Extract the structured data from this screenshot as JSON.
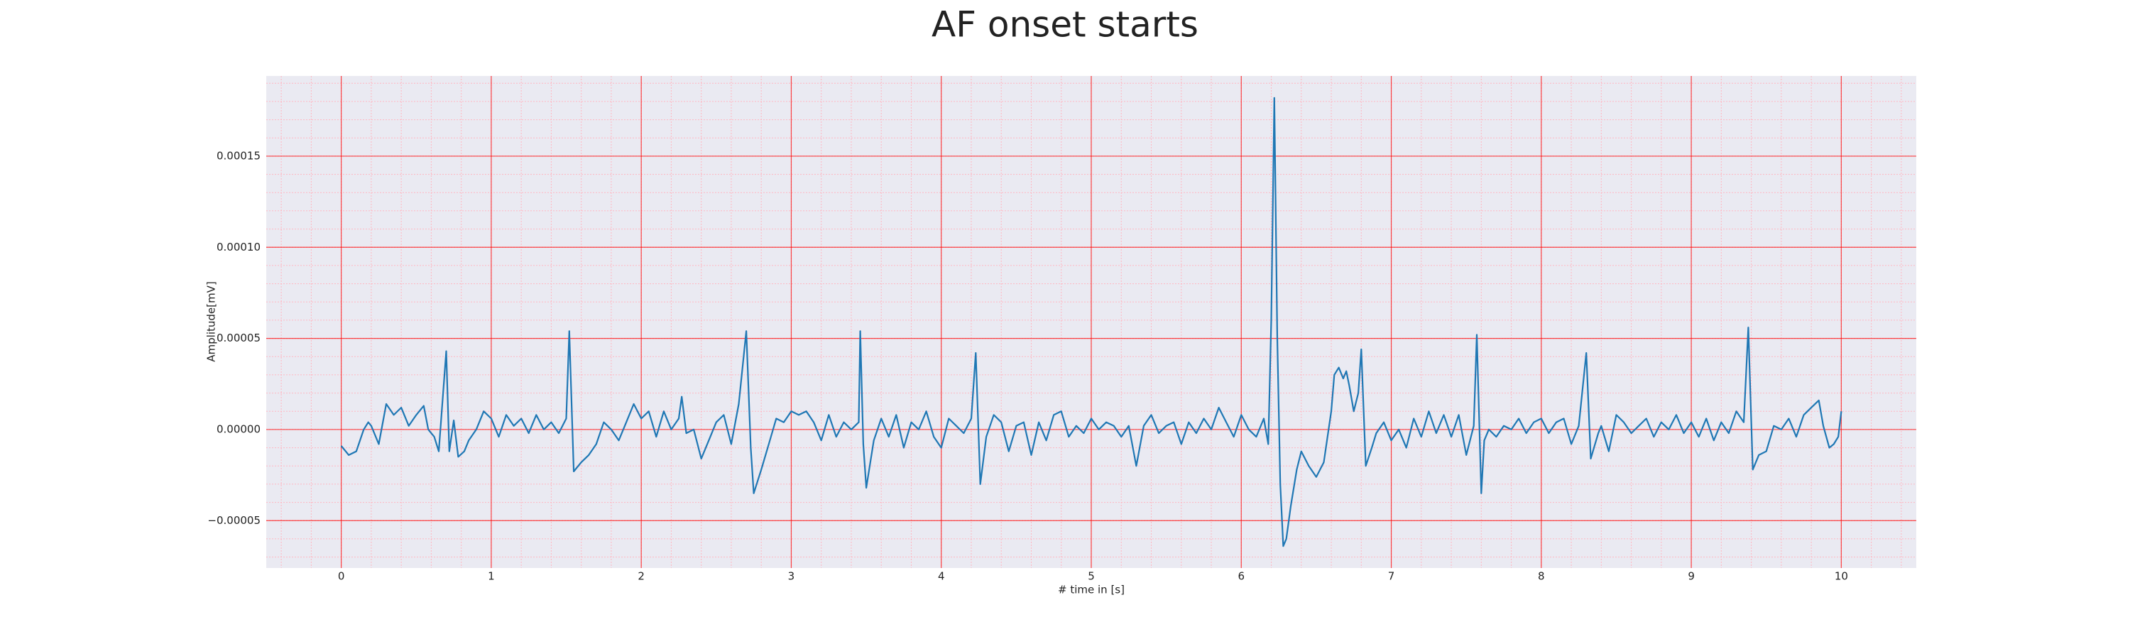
{
  "chart_data": {
    "type": "line",
    "title": "AF onset starts",
    "xlabel": "# time in [s]",
    "ylabel": "Amplitude[mV]",
    "color": "#1f77b4",
    "grid": true,
    "minor_grid": true,
    "grid_color": "#ff0000",
    "minor_grid_color": "#ffb6c1",
    "xlim": [
      -0.5,
      10.5
    ],
    "xticks": [
      0,
      1,
      2,
      3,
      4,
      5,
      6,
      7,
      8,
      9,
      10
    ],
    "ylim": [
      -7.6e-05,
      0.000194
    ],
    "yticks": [
      {
        "value": -5e-05,
        "label": "−0.00005"
      },
      {
        "value": 0,
        "label": "0.00000"
      },
      {
        "value": 5e-05,
        "label": "0.00005"
      },
      {
        "value": 0.0001,
        "label": "0.00010"
      },
      {
        "value": 0.00015,
        "label": "0.00015"
      }
    ],
    "x": [
      0,
      0.05,
      0.1,
      0.15,
      0.18,
      0.2,
      0.25,
      0.3,
      0.35,
      0.4,
      0.45,
      0.5,
      0.55,
      0.58,
      0.62,
      0.65,
      0.7,
      0.72,
      0.75,
      0.78,
      0.82,
      0.85,
      0.9,
      0.95,
      1.0,
      1.05,
      1.1,
      1.15,
      1.2,
      1.25,
      1.3,
      1.35,
      1.4,
      1.45,
      1.5,
      1.52,
      1.55,
      1.6,
      1.65,
      1.7,
      1.75,
      1.8,
      1.85,
      1.9,
      1.95,
      2.0,
      2.05,
      2.1,
      2.15,
      2.2,
      2.25,
      2.27,
      2.3,
      2.35,
      2.4,
      2.45,
      2.5,
      2.55,
      2.6,
      2.65,
      2.7,
      2.73,
      2.75,
      2.8,
      2.85,
      2.9,
      2.95,
      3.0,
      3.05,
      3.1,
      3.15,
      3.2,
      3.25,
      3.3,
      3.35,
      3.4,
      3.45,
      3.46,
      3.48,
      3.5,
      3.55,
      3.6,
      3.65,
      3.7,
      3.75,
      3.8,
      3.85,
      3.9,
      3.95,
      4.0,
      4.05,
      4.1,
      4.15,
      4.2,
      4.23,
      4.26,
      4.3,
      4.35,
      4.4,
      4.45,
      4.5,
      4.55,
      4.6,
      4.65,
      4.7,
      4.75,
      4.8,
      4.85,
      4.9,
      4.95,
      5.0,
      5.05,
      5.1,
      5.15,
      5.2,
      5.25,
      5.3,
      5.35,
      5.4,
      5.45,
      5.5,
      5.55,
      5.6,
      5.65,
      5.7,
      5.75,
      5.8,
      5.85,
      5.9,
      5.95,
      6.0,
      6.05,
      6.1,
      6.15,
      6.18,
      6.2,
      6.22,
      6.24,
      6.26,
      6.28,
      6.3,
      6.33,
      6.37,
      6.4,
      6.45,
      6.5,
      6.55,
      6.6,
      6.62,
      6.65,
      6.68,
      6.7,
      6.72,
      6.75,
      6.78,
      6.8,
      6.83,
      6.87,
      6.9,
      6.95,
      7.0,
      7.05,
      7.1,
      7.15,
      7.2,
      7.25,
      7.3,
      7.35,
      7.4,
      7.45,
      7.5,
      7.55,
      7.57,
      7.6,
      7.62,
      7.65,
      7.7,
      7.75,
      7.8,
      7.85,
      7.9,
      7.95,
      8.0,
      8.05,
      8.1,
      8.15,
      8.2,
      8.25,
      8.3,
      8.33,
      8.38,
      8.4,
      8.45,
      8.5,
      8.55,
      8.6,
      8.65,
      8.7,
      8.75,
      8.8,
      8.85,
      8.9,
      8.95,
      9.0,
      9.05,
      9.1,
      9.15,
      9.2,
      9.25,
      9.3,
      9.35,
      9.38,
      9.41,
      9.45,
      9.5,
      9.55,
      9.6,
      9.65,
      9.7,
      9.75,
      9.8,
      9.85,
      9.88,
      9.92,
      9.95,
      9.98,
      10.0
    ],
    "values": [
      -9e-06,
      -1.4e-05,
      -1.2e-05,
      0,
      4e-06,
      2e-06,
      -8e-06,
      1.4e-05,
      8e-06,
      1.2e-05,
      2e-06,
      8e-06,
      1.3e-05,
      0,
      -4e-06,
      -1.2e-05,
      4.3e-05,
      -1.2e-05,
      5e-06,
      -1.5e-05,
      -1.2e-05,
      -6e-06,
      0,
      1e-05,
      6e-06,
      -4e-06,
      8e-06,
      2e-06,
      6e-06,
      -2e-06,
      8e-06,
      0,
      4e-06,
      -2e-06,
      6e-06,
      5.4e-05,
      -2.3e-05,
      -1.8e-05,
      -1.4e-05,
      -8e-06,
      4e-06,
      0,
      -6e-06,
      4e-06,
      1.4e-05,
      6e-06,
      1e-05,
      -4e-06,
      1e-05,
      0,
      6e-06,
      1.8e-05,
      -2e-06,
      0,
      -1.6e-05,
      -6e-06,
      4e-06,
      8e-06,
      -8e-06,
      1.4e-05,
      5.4e-05,
      -1e-05,
      -3.5e-05,
      -2.2e-05,
      -8e-06,
      6e-06,
      4e-06,
      1e-05,
      8e-06,
      1e-05,
      4e-06,
      -6e-06,
      8e-06,
      -4e-06,
      4e-06,
      0,
      4e-06,
      5.4e-05,
      -8e-06,
      -3.2e-05,
      -6e-06,
      6e-06,
      -4e-06,
      8e-06,
      -1e-05,
      4e-06,
      0,
      1e-05,
      -4e-06,
      -1e-05,
      6e-06,
      2e-06,
      -2e-06,
      6e-06,
      4.2e-05,
      -3e-05,
      -4e-06,
      8e-06,
      4e-06,
      -1.2e-05,
      2e-06,
      4e-06,
      -1.4e-05,
      4e-06,
      -6e-06,
      8e-06,
      1e-05,
      -4e-06,
      2e-06,
      -2e-06,
      6e-06,
      0,
      4e-06,
      2e-06,
      -4e-06,
      2e-06,
      -2e-05,
      2e-06,
      8e-06,
      -2e-06,
      2e-06,
      4e-06,
      -8e-06,
      4e-06,
      -2e-06,
      6e-06,
      0,
      1.2e-05,
      4e-06,
      -4e-06,
      8e-06,
      0,
      -4e-06,
      6e-06,
      -8e-06,
      6e-05,
      0.000182,
      5e-05,
      -3e-05,
      -6.4e-05,
      -6e-05,
      -4.2e-05,
      -2.2e-05,
      -1.2e-05,
      -2e-05,
      -2.6e-05,
      -1.8e-05,
      1e-05,
      3e-05,
      3.4e-05,
      2.8e-05,
      3.2e-05,
      2.4e-05,
      1e-05,
      2e-05,
      4.4e-05,
      -2e-05,
      -1e-05,
      -2e-06,
      4e-06,
      -6e-06,
      0,
      -1e-05,
      6e-06,
      -4e-06,
      1e-05,
      -2e-06,
      8e-06,
      -4e-06,
      8e-06,
      -1.4e-05,
      2e-06,
      5.2e-05,
      -3.5e-05,
      -6e-06,
      0,
      -4e-06,
      2e-06,
      0,
      6e-06,
      -2e-06,
      4e-06,
      6e-06,
      -2e-06,
      4e-06,
      6e-06,
      -8e-06,
      2e-06,
      4.2e-05,
      -1.6e-05,
      -2e-06,
      2e-06,
      -1.2e-05,
      8e-06,
      4e-06,
      -2e-06,
      2e-06,
      6e-06,
      -4e-06,
      4e-06,
      0,
      8e-06,
      -2e-06,
      4e-06,
      -4e-06,
      6e-06,
      -6e-06,
      4e-06,
      -2e-06,
      1e-05,
      4e-06,
      5.6e-05,
      -2.2e-05,
      -1.4e-05,
      -1.2e-05,
      2e-06,
      0,
      6e-06,
      -4e-06,
      8e-06,
      1.2e-05,
      1.6e-05,
      2e-06,
      -1e-05,
      -8e-06,
      -4e-06,
      1e-05
    ]
  }
}
